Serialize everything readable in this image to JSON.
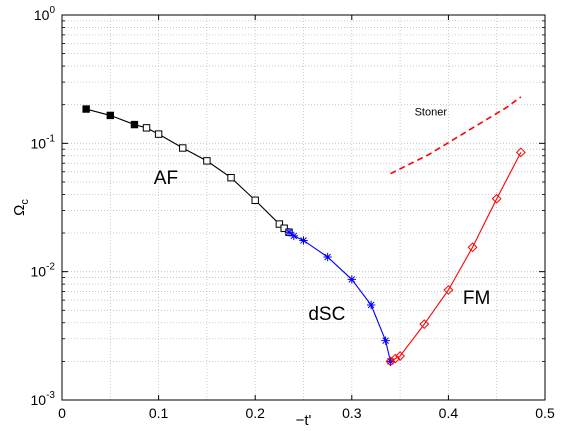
{
  "chart_data": {
    "type": "line",
    "x_label": "−t'",
    "y_label": "Ω",
    "y_label_subscript": "c",
    "y_scale": "log",
    "xlim": [
      0,
      0.5
    ],
    "ylim": [
      0.001,
      1
    ],
    "grid": true,
    "x_ticks": [
      "0",
      "0.1",
      "0.2",
      "0.3",
      "0.4",
      "0.5"
    ],
    "x_tick_values": [
      0,
      0.1,
      0.2,
      0.3,
      0.4,
      0.5
    ],
    "y_ticks": [
      {
        "value": 1,
        "base": "10",
        "exp": "0"
      },
      {
        "value": 0.1,
        "base": "10",
        "exp": "-1"
      },
      {
        "value": 0.01,
        "base": "10",
        "exp": "-2"
      },
      {
        "value": 0.001,
        "base": "10",
        "exp": "-3"
      }
    ],
    "series": [
      {
        "name": "AF",
        "color": "#000000",
        "markers": [
          "filled-square",
          "filled-square",
          "filled-square",
          "open-square",
          "open-square",
          "open-square",
          "open-square",
          "open-square",
          "open-square",
          "open-square",
          "open-square",
          "open-square"
        ],
        "x": [
          0.025,
          0.05,
          0.075,
          0.0875,
          0.1,
          0.125,
          0.15,
          0.175,
          0.2,
          0.225,
          0.23,
          0.235
        ],
        "y": [
          0.185,
          0.165,
          0.14,
          0.132,
          0.118,
          0.092,
          0.073,
          0.054,
          0.036,
          0.0235,
          0.0218,
          0.0203
        ]
      },
      {
        "name": "dSC",
        "color": "#0000ff",
        "markers": [
          "asterisk"
        ],
        "x": [
          0.235,
          0.24,
          0.25,
          0.275,
          0.3,
          0.32,
          0.335,
          0.34
        ],
        "y": [
          0.0203,
          0.019,
          0.0175,
          0.013,
          0.0087,
          0.0055,
          0.0029,
          0.002
        ]
      },
      {
        "name": "FM",
        "color": "#ff0000",
        "markers": [
          "open-diamond"
        ],
        "x": [
          0.34,
          0.345,
          0.35,
          0.375,
          0.4,
          0.425,
          0.45,
          0.475
        ],
        "y": [
          0.002,
          0.0021,
          0.0022,
          0.0039,
          0.0072,
          0.0155,
          0.037,
          0.085
        ]
      },
      {
        "name": "Stoner",
        "color": "#ff0000",
        "dashed": true,
        "x": [
          0.34,
          0.38,
          0.42,
          0.46,
          0.475
        ],
        "y": [
          0.058,
          0.082,
          0.125,
          0.19,
          0.23
        ]
      }
    ],
    "annotations": [
      {
        "text": "AF",
        "x": 0.095,
        "y": 0.048
      },
      {
        "text": "dSC",
        "x": 0.255,
        "y": 0.0042
      },
      {
        "text": "FM",
        "x": 0.415,
        "y": 0.0056
      },
      {
        "text": "Stoner",
        "x": 0.365,
        "y": 0.165
      }
    ]
  }
}
